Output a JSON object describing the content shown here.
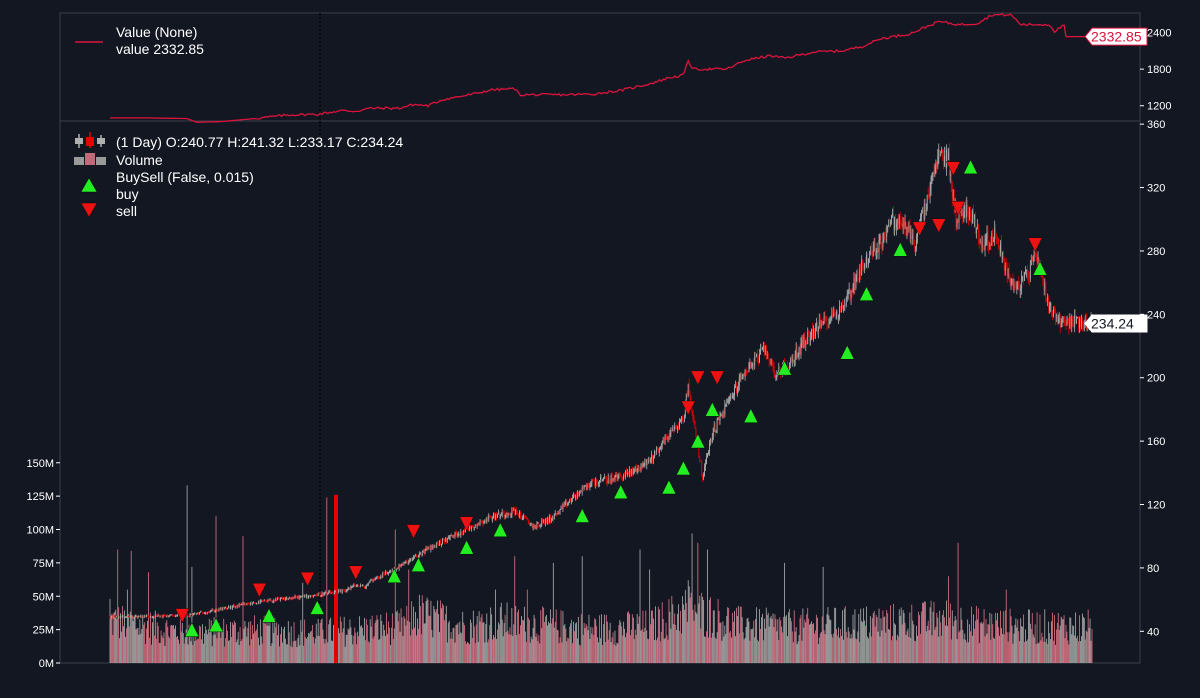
{
  "colors": {
    "background": "#131722",
    "value_line": "#dc143c",
    "up": "#b0b0b0",
    "down": "#e60000",
    "volume_up": "#b0b0b0",
    "volume_down": "#e07585",
    "buy_marker": "#22ee22",
    "sell_marker": "#ee1111",
    "badge_bg": "#ffffff"
  },
  "chart_data": [
    {
      "type": "line",
      "panel": "value",
      "legend": {
        "title": "Value (None)",
        "entry": "value 2332.85"
      },
      "last_value_label": "2332.85",
      "ylim": [
        950,
        2720
      ],
      "yticks": [
        "1200",
        "1800",
        "2400"
      ],
      "series": [
        {
          "name": "value",
          "points": [
            [
              0,
              1000
            ],
            [
              40,
              1000
            ],
            [
              80,
              990
            ],
            [
              90,
              930
            ],
            [
              115,
              940
            ],
            [
              150,
              990
            ],
            [
              185,
              1050
            ],
            [
              215,
              1060
            ],
            [
              240,
              1120
            ],
            [
              255,
              1110
            ],
            [
              270,
              1160
            ],
            [
              300,
              1160
            ],
            [
              315,
              1220
            ],
            [
              330,
              1200
            ],
            [
              345,
              1300
            ],
            [
              380,
              1400
            ],
            [
              395,
              1460
            ],
            [
              420,
              1480
            ],
            [
              425,
              1380
            ],
            [
              470,
              1380
            ],
            [
              500,
              1390
            ],
            [
              530,
              1450
            ],
            [
              560,
              1560
            ],
            [
              580,
              1660
            ],
            [
              595,
              1700
            ],
            [
              600,
              1940
            ],
            [
              605,
              1800
            ],
            [
              640,
              1800
            ],
            [
              660,
              1950
            ],
            [
              685,
              2020
            ],
            [
              700,
              1980
            ],
            [
              730,
              2080
            ],
            [
              760,
              2100
            ],
            [
              780,
              2170
            ],
            [
              800,
              2300
            ],
            [
              830,
              2380
            ],
            [
              860,
              2580
            ],
            [
              880,
              2530
            ],
            [
              900,
              2550
            ],
            [
              915,
              2690
            ],
            [
              935,
              2690
            ],
            [
              945,
              2530
            ],
            [
              975,
              2530
            ],
            [
              980,
              2420
            ],
            [
              990,
              2520
            ],
            [
              992,
              2332.85
            ],
            [
              1020,
              2332.85
            ]
          ]
        }
      ]
    },
    {
      "type": "candlestick",
      "panel": "price",
      "legend": {
        "ohlc": " (1 Day) O:240.77 H:241.32 L:233.17 C:234.24",
        "volume": "Volume",
        "buysell": "BuySell (False, 0.015)",
        "buy": "buy",
        "sell": "sell"
      },
      "last_close_label": "234.24",
      "ohlc": {
        "open": 240.77,
        "high": 241.32,
        "low": 233.17,
        "close": 234.24
      },
      "ylim": [
        20,
        362
      ],
      "yticks": [
        "40",
        "80",
        "120",
        "160",
        "200",
        "240",
        "280",
        "320",
        "360"
      ],
      "bars": 1020,
      "price_path": [
        [
          0,
          49
        ],
        [
          80,
          50
        ],
        [
          150,
          58
        ],
        [
          215,
          63
        ],
        [
          240,
          65
        ],
        [
          255,
          69
        ],
        [
          265,
          68
        ],
        [
          270,
          72
        ],
        [
          295,
          79
        ],
        [
          315,
          86
        ],
        [
          330,
          92
        ],
        [
          355,
          100
        ],
        [
          385,
          109
        ],
        [
          395,
          112
        ],
        [
          420,
          116
        ],
        [
          440,
          106
        ],
        [
          460,
          112
        ],
        [
          480,
          124
        ],
        [
          500,
          134
        ],
        [
          520,
          136
        ],
        [
          540,
          140
        ],
        [
          560,
          148
        ],
        [
          580,
          164
        ],
        [
          595,
          174
        ],
        [
          600,
          196
        ],
        [
          605,
          175
        ],
        [
          615,
          137
        ],
        [
          625,
          165
        ],
        [
          640,
          183
        ],
        [
          660,
          205
        ],
        [
          680,
          218
        ],
        [
          690,
          203
        ],
        [
          705,
          208
        ],
        [
          720,
          223
        ],
        [
          740,
          235
        ],
        [
          760,
          244
        ],
        [
          780,
          270
        ],
        [
          800,
          286
        ],
        [
          810,
          299
        ],
        [
          825,
          296
        ],
        [
          835,
          285
        ],
        [
          845,
          305
        ],
        [
          860,
          340
        ],
        [
          870,
          338
        ],
        [
          878,
          300
        ],
        [
          890,
          308
        ],
        [
          905,
          285
        ],
        [
          920,
          290
        ],
        [
          930,
          268
        ],
        [
          940,
          255
        ],
        [
          955,
          268
        ],
        [
          960,
          282
        ],
        [
          965,
          268
        ],
        [
          975,
          245
        ],
        [
          985,
          236
        ],
        [
          1020,
          234.24
        ]
      ],
      "buy_signals": [
        [
          85,
          48
        ],
        [
          110,
          51
        ],
        [
          165,
          57
        ],
        [
          215,
          62
        ],
        [
          295,
          82
        ],
        [
          320,
          89
        ],
        [
          370,
          100
        ],
        [
          405,
          111
        ],
        [
          490,
          120
        ],
        [
          530,
          135
        ],
        [
          580,
          138
        ],
        [
          595,
          150
        ],
        [
          610,
          167
        ],
        [
          625,
          187
        ],
        [
          665,
          183
        ],
        [
          700,
          213
        ],
        [
          765,
          223
        ],
        [
          785,
          260
        ],
        [
          820,
          288
        ],
        [
          893,
          340
        ],
        [
          965,
          276
        ]
      ],
      "sell_signals": [
        [
          75,
          43
        ],
        [
          155,
          59
        ],
        [
          205,
          66
        ],
        [
          255,
          70
        ],
        [
          315,
          96
        ],
        [
          370,
          101
        ],
        [
          600,
          174
        ],
        [
          610,
          193
        ],
        [
          630,
          193
        ],
        [
          840,
          287
        ],
        [
          860,
          289
        ],
        [
          875,
          325
        ],
        [
          880,
          300
        ],
        [
          960,
          277
        ]
      ]
    },
    {
      "type": "bar",
      "panel": "volume",
      "ylim": [
        0,
        155
      ],
      "yticks": [
        "0M",
        "25M",
        "50M",
        "75M",
        "100M",
        "125M",
        "150M"
      ],
      "unit": "M",
      "profile": [
        [
          0,
          35
        ],
        [
          40,
          30
        ],
        [
          80,
          25
        ],
        [
          150,
          27
        ],
        [
          215,
          25
        ],
        [
          300,
          30
        ],
        [
          320,
          40
        ],
        [
          370,
          30
        ],
        [
          400,
          35
        ],
        [
          440,
          32
        ],
        [
          500,
          28
        ],
        [
          560,
          30
        ],
        [
          600,
          45
        ],
        [
          620,
          40
        ],
        [
          650,
          32
        ],
        [
          700,
          30
        ],
        [
          800,
          33
        ],
        [
          870,
          36
        ],
        [
          900,
          32
        ],
        [
          950,
          30
        ],
        [
          1020,
          30
        ]
      ],
      "spikes": [
        [
          0,
          48
        ],
        [
          8,
          85
        ],
        [
          18,
          55
        ],
        [
          22,
          84
        ],
        [
          40,
          68
        ],
        [
          80,
          133
        ],
        [
          85,
          72
        ],
        [
          110,
          110
        ],
        [
          138,
          95
        ],
        [
          200,
          60
        ],
        [
          225,
          124
        ],
        [
          296,
          100
        ],
        [
          310,
          70
        ],
        [
          400,
          55
        ],
        [
          420,
          80
        ],
        [
          433,
          55
        ],
        [
          460,
          75
        ],
        [
          490,
          80
        ],
        [
          550,
          85
        ],
        [
          560,
          70
        ],
        [
          600,
          62
        ],
        [
          604,
          97
        ],
        [
          610,
          90
        ],
        [
          620,
          85
        ],
        [
          700,
          75
        ],
        [
          740,
          72
        ],
        [
          870,
          65
        ],
        [
          880,
          90
        ],
        [
          930,
          55
        ]
      ]
    }
  ]
}
